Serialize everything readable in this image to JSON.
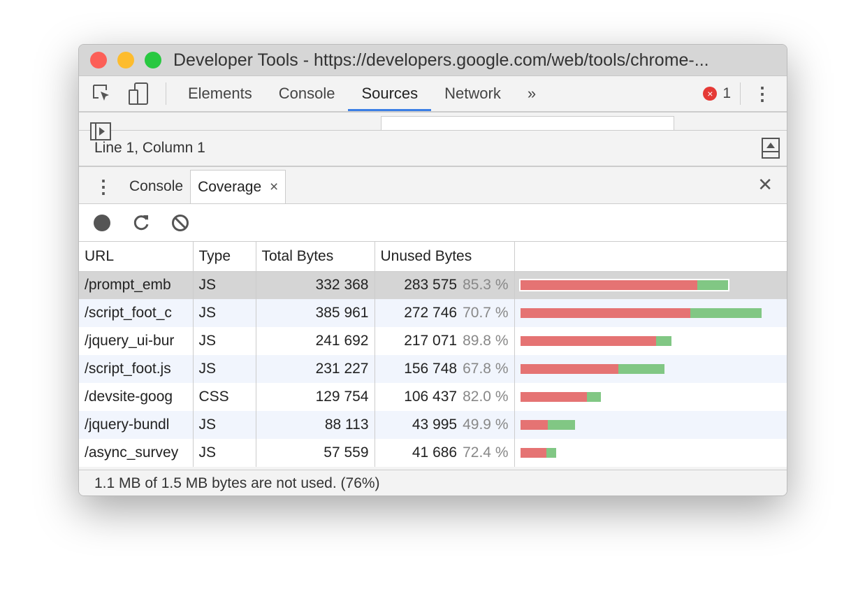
{
  "window": {
    "title": "Developer Tools - https://developers.google.com/web/tools/chrome-..."
  },
  "toolbar": {
    "tabs": [
      "Elements",
      "Console",
      "Sources",
      "Network"
    ],
    "active": "Sources",
    "more": "»",
    "error_count": "1"
  },
  "status": {
    "position": "Line 1, Column 1"
  },
  "drawer": {
    "tabs": [
      "Console",
      "Coverage"
    ],
    "active": "Coverage",
    "close_tab": "×",
    "close_drawer": "✕"
  },
  "coverage": {
    "columns": [
      "URL",
      "Type",
      "Total Bytes",
      "Unused Bytes",
      ""
    ],
    "rows": [
      {
        "url": "/prompt_emb",
        "type": "JS",
        "total": "332 368",
        "unused": "283 575",
        "pct": "85.3 %",
        "total_n": 332368,
        "unused_n": 283575
      },
      {
        "url": "/script_foot_c",
        "type": "JS",
        "total": "385 961",
        "unused": "272 746",
        "pct": "70.7 %",
        "total_n": 385961,
        "unused_n": 272746
      },
      {
        "url": "/jquery_ui-bur",
        "type": "JS",
        "total": "241 692",
        "unused": "217 071",
        "pct": "89.8 %",
        "total_n": 241692,
        "unused_n": 217071
      },
      {
        "url": "/script_foot.js",
        "type": "JS",
        "total": "231 227",
        "unused": "156 748",
        "pct": "67.8 %",
        "total_n": 231227,
        "unused_n": 156748
      },
      {
        "url": "/devsite-goog",
        "type": "CSS",
        "total": "129 754",
        "unused": "106 437",
        "pct": "82.0 %",
        "total_n": 129754,
        "unused_n": 106437
      },
      {
        "url": "/jquery-bundl",
        "type": "JS",
        "total": "88 113",
        "unused": "43 995",
        "pct": "49.9 %",
        "total_n": 88113,
        "unused_n": 43995
      },
      {
        "url": "/async_survey",
        "type": "JS",
        "total": "57 559",
        "unused": "41 686",
        "pct": "72.4 %",
        "total_n": 57559,
        "unused_n": 41686
      }
    ],
    "summary": "1.1 MB of 1.5 MB bytes are not used. (76%)",
    "colors": {
      "unused": "#e57373",
      "used": "#81c784"
    }
  }
}
